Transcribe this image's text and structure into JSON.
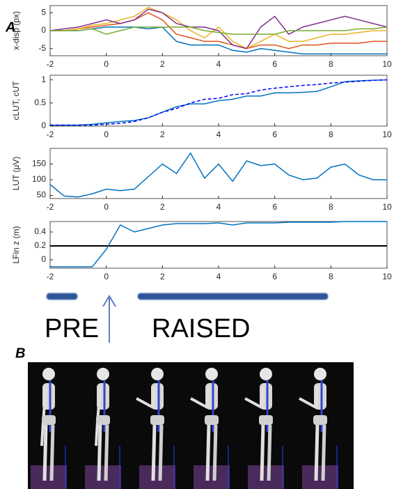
{
  "annotations": {
    "panel_a": "A",
    "panel_b": "B",
    "pre": "PRE",
    "raised": "RAISED"
  },
  "chart_data": [
    {
      "type": "line",
      "ylabel": "x-disp (px)",
      "x": [
        -2,
        -1.5,
        -1,
        -0.5,
        0,
        0.5,
        1,
        1.5,
        2,
        2.5,
        3,
        3.5,
        4,
        4.5,
        5,
        5.5,
        6,
        6.5,
        7,
        7.5,
        8,
        8.5,
        9,
        9.5,
        10
      ],
      "xlim": [
        -2,
        10
      ],
      "xticks": [
        -2,
        0,
        2,
        4,
        6,
        8,
        10
      ],
      "ylim": [
        -7,
        7
      ],
      "yticks": [
        -5,
        0,
        5
      ],
      "series": [
        {
          "color": "#0072bd",
          "values": [
            0,
            0,
            0,
            0.5,
            1,
            1,
            1,
            0.5,
            1,
            -3,
            -4,
            -4,
            -4,
            -5.5,
            -6,
            -5,
            -5.5,
            -6,
            -6.5,
            -6.5,
            -6.5,
            -6.5,
            -6.5,
            -6.5,
            -6.5
          ]
        },
        {
          "color": "#d95319",
          "values": [
            0,
            0,
            0.5,
            1,
            1.5,
            2,
            3,
            5,
            3,
            -1,
            -2,
            -3,
            -3,
            -4,
            -5,
            -4,
            -4,
            -5,
            -4,
            -4,
            -3.5,
            -3.5,
            -3.5,
            -3,
            -3
          ]
        },
        {
          "color": "#edb120",
          "values": [
            0,
            0,
            0.5,
            1.5,
            2,
            3,
            4,
            6.5,
            5,
            3,
            0,
            -2,
            1,
            -3,
            -5,
            -3,
            -1,
            -3,
            -3,
            -2,
            -1,
            -1,
            -0.5,
            0,
            0
          ]
        },
        {
          "color": "#7e2f8e",
          "values": [
            0,
            0.5,
            1,
            2,
            3,
            2,
            3,
            6,
            5,
            2,
            1,
            1,
            0,
            -4,
            -5,
            1,
            4,
            -1,
            1,
            2,
            3,
            4,
            3,
            2,
            1
          ]
        },
        {
          "color": "#77ac30",
          "values": [
            0,
            0,
            0,
            0.5,
            -1,
            0,
            1,
            1,
            1,
            1,
            1,
            0,
            -0.5,
            -1,
            -1,
            -1,
            -1,
            0,
            0,
            0,
            0,
            0,
            0.5,
            0.5,
            1
          ]
        }
      ]
    },
    {
      "type": "line",
      "ylabel": "cLUT, cUT",
      "x": [
        -2,
        -1.5,
        -1,
        -0.5,
        0,
        0.5,
        1,
        1.5,
        2,
        2.5,
        3,
        3.5,
        4,
        4.5,
        5,
        5.5,
        6,
        6.5,
        7,
        7.5,
        8,
        8.5,
        9,
        9.5,
        10
      ],
      "xlim": [
        -2,
        10
      ],
      "xticks": [
        -2,
        0,
        2,
        4,
        6,
        8,
        10
      ],
      "ylim": [
        0,
        1.1
      ],
      "yticks": [
        0,
        0.5,
        1
      ],
      "series": [
        {
          "color": "#0072bd",
          "values": [
            0.02,
            0.02,
            0.02,
            0.04,
            0.07,
            0.1,
            0.12,
            0.18,
            0.3,
            0.42,
            0.48,
            0.48,
            0.55,
            0.58,
            0.65,
            0.65,
            0.72,
            0.72,
            0.73,
            0.75,
            0.85,
            0.96,
            0.98,
            0.99,
            1.0
          ]
        },
        {
          "color": "#0000ff",
          "dashed": true,
          "values": [
            0.02,
            0.02,
            0.02,
            0.02,
            0.04,
            0.06,
            0.1,
            0.18,
            0.3,
            0.38,
            0.5,
            0.58,
            0.6,
            0.68,
            0.7,
            0.78,
            0.82,
            0.85,
            0.88,
            0.9,
            0.93,
            0.95,
            0.97,
            0.99,
            1.0
          ]
        }
      ]
    },
    {
      "type": "line",
      "ylabel": "LUT (μV)",
      "x": [
        -2,
        -1.5,
        -1,
        -0.5,
        0,
        0.5,
        1,
        1.5,
        2,
        2.5,
        3,
        3.5,
        4,
        4.5,
        5,
        5.5,
        6,
        6.5,
        7,
        7.5,
        8,
        8.5,
        9,
        9.5,
        10
      ],
      "xlim": [
        -2,
        10
      ],
      "xticks": [
        -2,
        0,
        2,
        4,
        6,
        8,
        10
      ],
      "ylim": [
        40,
        200
      ],
      "yticks": [
        50,
        100,
        150
      ],
      "series": [
        {
          "color": "#0072bd",
          "values": [
            85,
            48,
            45,
            55,
            70,
            65,
            70,
            110,
            150,
            120,
            185,
            105,
            150,
            95,
            160,
            145,
            150,
            115,
            100,
            105,
            140,
            150,
            115,
            100,
            100
          ]
        }
      ]
    },
    {
      "type": "line",
      "ylabel": "LFin z (m)",
      "x": [
        -2,
        -1.5,
        -1,
        -0.5,
        0,
        0.5,
        1,
        1.5,
        2,
        2.5,
        3,
        3.5,
        4,
        4.5,
        5,
        5.5,
        6,
        6.5,
        7,
        7.5,
        8,
        8.5,
        9,
        9.5,
        10
      ],
      "xlim": [
        -2,
        10
      ],
      "xticks": [
        -2,
        0,
        2,
        4,
        6,
        8,
        10
      ],
      "ylim": [
        -0.12,
        0.55
      ],
      "yticks": [
        0,
        0.2,
        0.4
      ],
      "hline": 0.2,
      "hline_color": "#000000",
      "series": [
        {
          "color": "#0072bd",
          "values": [
            -0.1,
            -0.1,
            -0.1,
            -0.1,
            0.15,
            0.5,
            0.4,
            0.45,
            0.5,
            0.52,
            0.52,
            0.52,
            0.53,
            0.5,
            0.53,
            0.53,
            0.53,
            0.54,
            0.54,
            0.54,
            0.54,
            0.55,
            0.55,
            0.55,
            0.55
          ]
        }
      ]
    }
  ]
}
